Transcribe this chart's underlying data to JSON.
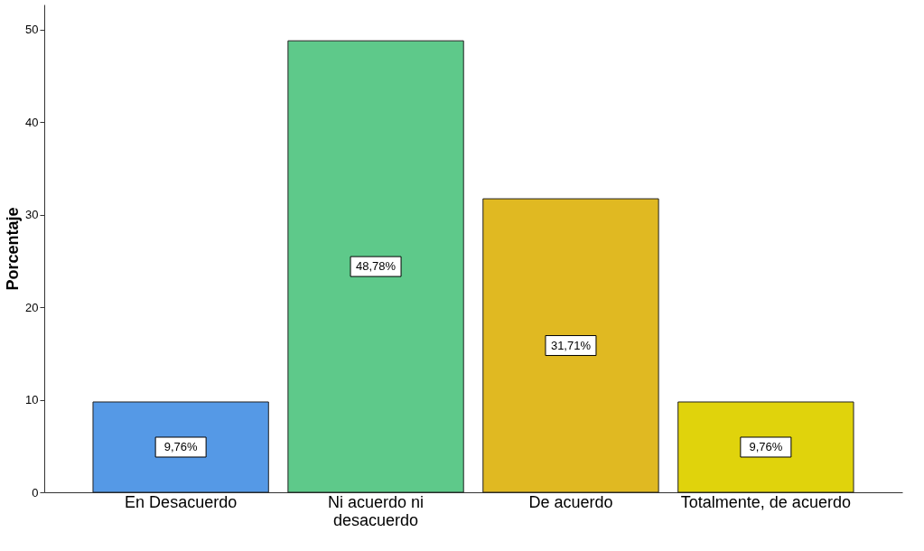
{
  "chart_data": {
    "type": "bar",
    "ylabel": "Porcentaje",
    "categories": [
      "En Desacuerdo",
      "Ni acuerdo ni desacuerdo",
      "De acuerdo",
      "Totalmente, de acuerdo"
    ],
    "values": [
      9.76,
      48.78,
      31.71,
      9.76
    ],
    "colors": [
      "#5599e6",
      "#5ec98a",
      "#e0b922",
      "#e0d30c"
    ],
    "value_labels": [
      "9,76%",
      "48,78%",
      "31,71%",
      "9,76%"
    ],
    "ylim": [
      0,
      52.7
    ],
    "yticks": [
      0,
      10,
      20,
      30,
      40,
      50
    ],
    "grid": false
  }
}
